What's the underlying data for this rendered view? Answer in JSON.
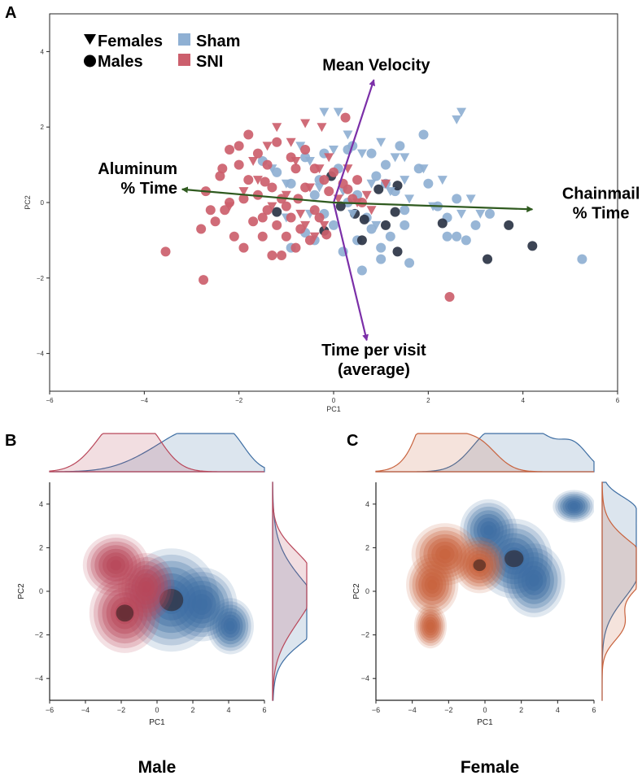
{
  "colors": {
    "sham": "#8fb0d3",
    "sni": "#cc5f6d",
    "sham_dark": "#2b3445",
    "arrow_purple": "#7b2fa8",
    "arrow_green": "#2f5a1f",
    "kde_blue": "#3e6ea3",
    "kde_red": "#b9475a",
    "kde_orange": "#c8623d",
    "kde_dark": "#2a1a1a"
  },
  "panel_labels": {
    "a": "A",
    "b": "B",
    "c": "C"
  },
  "captions": {
    "male": "Male",
    "female": "Female"
  },
  "chart_data": [
    {
      "id": "A",
      "type": "scatter",
      "title": "",
      "xlabel": "PC1",
      "ylabel": "PC2",
      "xlim": [
        -6,
        6
      ],
      "ylim": [
        -5,
        5
      ],
      "xticks": [
        -6,
        -4,
        -2,
        0,
        2,
        4,
        6
      ],
      "yticks": [
        -4,
        -2,
        0,
        2,
        4
      ],
      "legend": {
        "position": "top-left",
        "shapes": [
          {
            "label": "Females",
            "marker": "triangle"
          },
          {
            "label": "Males",
            "marker": "circle"
          }
        ],
        "groups": [
          {
            "label": "Sham",
            "color": "#8fb0d3"
          },
          {
            "label": "SNI",
            "color": "#cc5f6d"
          }
        ]
      },
      "loadings": [
        {
          "label": [
            "Mean Velocity"
          ],
          "from": [
            0,
            0
          ],
          "to": [
            0.85,
            3.25
          ],
          "color": "#7b2fa8",
          "label_at": [
            0.9,
            3.5
          ],
          "anchor": "middle"
        },
        {
          "label": [
            "Time per visit",
            "(average)"
          ],
          "from": [
            0,
            0
          ],
          "to": [
            0.7,
            -3.65
          ],
          "color": "#7b2fa8",
          "label_at": [
            0.85,
            -4.05
          ],
          "anchor": "middle"
        },
        {
          "label": [
            "Aluminum",
            "% Time"
          ],
          "from": [
            0,
            0
          ],
          "to": [
            -3.2,
            0.35
          ],
          "color": "#2f5a1f",
          "label_at": [
            -3.3,
            0.75
          ],
          "anchor": "end"
        },
        {
          "label": [
            "Chainmail",
            "% Time"
          ],
          "from": [
            0,
            0
          ],
          "to": [
            4.2,
            -0.18
          ],
          "color": "#2f5a1f",
          "label_at": [
            5.65,
            0.1
          ],
          "anchor": "middle"
        }
      ],
      "series": [
        {
          "name": "Sham Males",
          "group": "Sham",
          "marker": "circle",
          "color": "#8fb0d3",
          "points": [
            [
              -1.5,
              1.1
            ],
            [
              -1.2,
              0.8
            ],
            [
              -0.9,
              0.5
            ],
            [
              -0.6,
              1.2
            ],
            [
              -0.4,
              0.2
            ],
            [
              -0.2,
              -0.3
            ],
            [
              0.1,
              0.9
            ],
            [
              0.3,
              1.4
            ],
            [
              0.5,
              0.2
            ],
            [
              0.7,
              -0.4
            ],
            [
              0.9,
              0.7
            ],
            [
              1.1,
              1.0
            ],
            [
              1.3,
              0.3
            ],
            [
              1.5,
              -0.2
            ],
            [
              1.8,
              0.9
            ],
            [
              2.0,
              0.5
            ],
            [
              2.2,
              -0.1
            ],
            [
              2.4,
              -0.4
            ],
            [
              2.6,
              -0.9
            ],
            [
              2.8,
              -1.0
            ],
            [
              3.0,
              -0.6
            ],
            [
              3.3,
              -0.3
            ],
            [
              0.0,
              -0.6
            ],
            [
              0.2,
              -1.3
            ],
            [
              0.5,
              -1.0
            ],
            [
              0.8,
              -0.7
            ],
            [
              1.0,
              -1.2
            ],
            [
              1.2,
              -0.9
            ],
            [
              1.5,
              -0.6
            ],
            [
              -0.3,
              0.6
            ],
            [
              -0.6,
              -0.8
            ],
            [
              -0.9,
              -1.2
            ],
            [
              -0.4,
              -1.0
            ],
            [
              0.6,
              -1.8
            ],
            [
              1.0,
              -1.5
            ],
            [
              1.6,
              -1.6
            ],
            [
              2.4,
              -0.9
            ],
            [
              1.9,
              1.8
            ],
            [
              0.4,
              1.5
            ],
            [
              -0.2,
              1.3
            ],
            [
              0.8,
              1.3
            ],
            [
              1.4,
              1.5
            ],
            [
              5.25,
              -1.5
            ],
            [
              2.6,
              0.1
            ],
            [
              1.1,
              0.5
            ],
            [
              0.3,
              0.0
            ]
          ]
        },
        {
          "name": "Sham Males (dark)",
          "group": "Sham",
          "marker": "circle",
          "color": "#2b3445",
          "points": [
            [
              0.15,
              -0.1
            ],
            [
              0.45,
              -0.3
            ],
            [
              0.6,
              -1.0
            ],
            [
              1.1,
              -0.6
            ],
            [
              1.35,
              0.45
            ],
            [
              1.3,
              -0.25
            ],
            [
              1.35,
              -1.3
            ],
            [
              0.95,
              0.35
            ],
            [
              2.3,
              -0.55
            ],
            [
              3.25,
              -1.5
            ],
            [
              3.7,
              -0.6
            ],
            [
              4.2,
              -1.15
            ],
            [
              -0.2,
              -0.75
            ],
            [
              -1.2,
              -0.25
            ],
            [
              -0.05,
              0.7
            ],
            [
              0.65,
              -0.45
            ]
          ]
        },
        {
          "name": "Sham Females",
          "group": "Sham",
          "marker": "triangle",
          "color": "#8fb0d3",
          "points": [
            [
              -0.2,
              2.4
            ],
            [
              0.1,
              2.4
            ],
            [
              -0.7,
              1.5
            ],
            [
              -1.3,
              0.9
            ],
            [
              -1.0,
              0.5
            ],
            [
              -0.5,
              1.1
            ],
            [
              0.0,
              1.4
            ],
            [
              0.3,
              1.8
            ],
            [
              0.6,
              1.3
            ],
            [
              1.0,
              1.6
            ],
            [
              1.3,
              1.2
            ],
            [
              1.5,
              1.2
            ],
            [
              1.9,
              0.9
            ],
            [
              2.3,
              0.6
            ],
            [
              0.8,
              0.5
            ],
            [
              1.2,
              0.3
            ],
            [
              1.6,
              0.1
            ],
            [
              2.1,
              -0.1
            ],
            [
              2.7,
              -0.3
            ],
            [
              3.1,
              -0.3
            ],
            [
              2.7,
              2.4
            ],
            [
              2.6,
              2.2
            ],
            [
              -1.0,
              -0.4
            ],
            [
              -0.5,
              -0.3
            ],
            [
              0.4,
              -0.3
            ],
            [
              0.9,
              -0.6
            ],
            [
              -0.3,
              0.4
            ],
            [
              0.2,
              0.3
            ],
            [
              2.9,
              0.1
            ],
            [
              1.5,
              0.6
            ]
          ]
        },
        {
          "name": "SNI Males",
          "group": "SNI",
          "marker": "circle",
          "color": "#cc5f6d",
          "points": [
            [
              -2.2,
              1.4
            ],
            [
              -2.0,
              1.0
            ],
            [
              -1.8,
              0.6
            ],
            [
              -1.6,
              0.2
            ],
            [
              -1.4,
              -0.2
            ],
            [
              -1.2,
              -0.6
            ],
            [
              -1.0,
              -0.9
            ],
            [
              -0.8,
              -1.2
            ],
            [
              -2.4,
              0.7
            ],
            [
              -2.3,
              -0.2
            ],
            [
              -2.5,
              -0.5
            ],
            [
              -2.1,
              -0.9
            ],
            [
              -1.9,
              -1.2
            ],
            [
              -1.7,
              -0.5
            ],
            [
              -1.5,
              -0.9
            ],
            [
              -1.3,
              0.4
            ],
            [
              -1.1,
              0.1
            ],
            [
              -0.9,
              -0.4
            ],
            [
              -0.7,
              -0.7
            ],
            [
              -0.5,
              -1.0
            ],
            [
              -0.3,
              -0.4
            ],
            [
              -0.1,
              0.3
            ],
            [
              -2.0,
              1.5
            ],
            [
              -1.8,
              1.8
            ],
            [
              -1.4,
              1.0
            ],
            [
              -1.2,
              1.6
            ],
            [
              -0.8,
              0.9
            ],
            [
              -0.6,
              0.4
            ],
            [
              -0.4,
              0.9
            ],
            [
              -0.2,
              0.6
            ],
            [
              0.0,
              0.8
            ],
            [
              0.2,
              0.5
            ],
            [
              0.4,
              0.1
            ],
            [
              0.6,
              0.0
            ],
            [
              -2.7,
              0.3
            ],
            [
              -2.8,
              -0.7
            ],
            [
              -3.55,
              -1.3
            ],
            [
              -2.75,
              -2.05
            ],
            [
              2.45,
              -2.5
            ],
            [
              0.25,
              2.25
            ],
            [
              -1.1,
              -1.4
            ],
            [
              -1.3,
              -1.4
            ],
            [
              -0.9,
              1.2
            ],
            [
              -1.6,
              1.3
            ],
            [
              -2.6,
              -0.2
            ],
            [
              -1.0,
              -0.1
            ],
            [
              0.5,
              0.6
            ],
            [
              0.3,
              0.35
            ],
            [
              -0.6,
              1.4
            ],
            [
              -0.4,
              -0.2
            ],
            [
              -2.2,
              0.0
            ],
            [
              -1.9,
              0.1
            ],
            [
              -1.5,
              -0.4
            ],
            [
              -0.15,
              -0.85
            ],
            [
              -0.75,
              0.1
            ],
            [
              -2.35,
              0.9
            ],
            [
              -1.45,
              0.55
            ]
          ]
        },
        {
          "name": "SNI Females",
          "group": "SNI",
          "marker": "triangle",
          "color": "#cc5f6d",
          "points": [
            [
              -1.2,
              2.0
            ],
            [
              -0.6,
              2.1
            ],
            [
              -1.4,
              1.5
            ],
            [
              -0.8,
              1.1
            ],
            [
              -0.3,
              0.9
            ],
            [
              -0.5,
              0.4
            ],
            [
              -1.0,
              0.2
            ],
            [
              -1.3,
              -0.1
            ],
            [
              -0.7,
              -0.3
            ],
            [
              -0.2,
              -0.6
            ],
            [
              0.1,
              0.1
            ],
            [
              -0.4,
              -0.9
            ],
            [
              0.5,
              0.0
            ],
            [
              0.8,
              -0.2
            ],
            [
              1.1,
              0.5
            ],
            [
              -1.6,
              0.6
            ],
            [
              -1.9,
              0.3
            ],
            [
              -2.2,
              -0.1
            ],
            [
              0.3,
              0.9
            ],
            [
              -0.9,
              1.6
            ],
            [
              -1.7,
              1.1
            ],
            [
              -0.1,
              1.2
            ],
            [
              0.7,
              0.2
            ],
            [
              -0.6,
              -0.6
            ],
            [
              -0.25,
              2.0
            ]
          ]
        }
      ]
    },
    {
      "id": "B",
      "type": "kde_joint",
      "title": "Male",
      "xlabel": "PC1",
      "ylabel": "PC2",
      "xlim": [
        -6,
        6
      ],
      "ylim": [
        -5,
        5
      ],
      "xticks": [
        -6,
        -4,
        -2,
        0,
        2,
        4,
        6
      ],
      "yticks": [
        -4,
        -2,
        0,
        2,
        4
      ],
      "series": [
        {
          "name": "Sham",
          "color": "#3e6ea3",
          "blobs": [
            {
              "x": 0.8,
              "y": -0.4,
              "sx": 1.9,
              "sy": 1.7
            },
            {
              "x": 2.5,
              "y": -0.6,
              "sx": 1.4,
              "sy": 1.2
            },
            {
              "x": 4.1,
              "y": -1.6,
              "sx": 0.9,
              "sy": 0.9
            }
          ],
          "marginal_x_peak": 0.4,
          "marginal_y_peak": -1.0
        },
        {
          "name": "SNI",
          "color": "#b9475a",
          "blobs": [
            {
              "x": -1.8,
              "y": -1.0,
              "sx": 1.4,
              "sy": 1.3
            },
            {
              "x": -2.3,
              "y": 1.2,
              "sx": 1.3,
              "sy": 1.0
            },
            {
              "x": -0.6,
              "y": 0.2,
              "sx": 1.1,
              "sy": 1.1
            }
          ],
          "marginal_x_peak": -1.5,
          "marginal_y_peak": -1.0
        }
      ]
    },
    {
      "id": "C",
      "type": "kde_joint",
      "title": "Female",
      "xlabel": "PC1",
      "ylabel": "PC2",
      "xlim": [
        -6,
        6
      ],
      "ylim": [
        -5,
        5
      ],
      "xticks": [
        -6,
        -4,
        -2,
        0,
        2,
        4,
        6
      ],
      "yticks": [
        -4,
        -2,
        0,
        2,
        4
      ],
      "series": [
        {
          "name": "Sham",
          "color": "#3e6ea3",
          "blobs": [
            {
              "x": 1.6,
              "y": 1.5,
              "sx": 1.5,
              "sy": 1.3
            },
            {
              "x": 2.7,
              "y": 0.5,
              "sx": 1.2,
              "sy": 1.2
            },
            {
              "x": 4.9,
              "y": 3.9,
              "sx": 0.8,
              "sy": 0.5
            },
            {
              "x": 0.2,
              "y": 2.8,
              "sx": 1.1,
              "sy": 1.0
            }
          ],
          "marginal_x_peak": 1.8,
          "marginal_y_peak": 1.5
        },
        {
          "name": "SNI",
          "color": "#c8623d",
          "blobs": [
            {
              "x": -0.3,
              "y": 1.2,
              "sx": 1.0,
              "sy": 0.9
            },
            {
              "x": -2.2,
              "y": 1.7,
              "sx": 1.3,
              "sy": 1.0
            },
            {
              "x": -2.9,
              "y": 0.3,
              "sx": 1.0,
              "sy": 1.0
            },
            {
              "x": -3.0,
              "y": -1.6,
              "sx": 0.6,
              "sy": 0.7
            }
          ],
          "marginal_x_peak": -2.0,
          "marginal_y_peak": 1.5
        }
      ]
    }
  ]
}
